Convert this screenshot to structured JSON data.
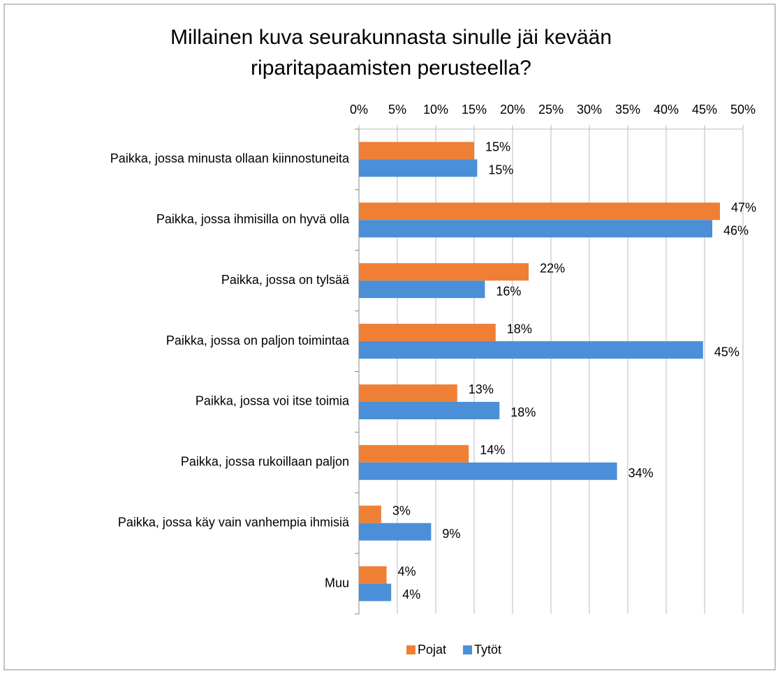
{
  "chart_data": {
    "type": "bar",
    "orientation": "horizontal",
    "title": "Millainen kuva seurakunnasta sinulle jäi kevään riparitapaamisten perusteella?",
    "categories": [
      "Paikka, jossa minusta ollaan kiinnostuneita",
      "Paikka, jossa ihmisilla on hyvä olla",
      "Paikka, jossa on tylsää",
      "Paikka, jossa on paljon toimintaa",
      "Paikka, jossa voi itse toimia",
      "Paikka, jossa rukoillaan paljon",
      "Paikka, jossa käy vain vanhempia ihmisiä",
      "Muu"
    ],
    "series": [
      {
        "name": "Pojat",
        "color": "#f07f36",
        "values": [
          15.0,
          47.0,
          22.1,
          17.8,
          12.8,
          14.3,
          2.9,
          3.6
        ],
        "value_labels": [
          "15%",
          "47%",
          "22%",
          "18%",
          "13%",
          "14%",
          "3%",
          "4%"
        ]
      },
      {
        "name": "Tytöt",
        "color": "#4a8fd8",
        "values": [
          15.4,
          46.0,
          16.4,
          44.8,
          18.3,
          33.6,
          9.4,
          4.2
        ],
        "value_labels": [
          "15%",
          "46%",
          "16%",
          "45%",
          "18%",
          "34%",
          "9%",
          "4%"
        ]
      }
    ],
    "xlim": [
      0,
      50
    ],
    "xticks": [
      {
        "value": 0,
        "label": "0%"
      },
      {
        "value": 5,
        "label": "5%"
      },
      {
        "value": 10,
        "label": "10%"
      },
      {
        "value": 15,
        "label": "15%"
      },
      {
        "value": 20,
        "label": "20%"
      },
      {
        "value": 25,
        "label": "25%"
      },
      {
        "value": 30,
        "label": "30%"
      },
      {
        "value": 35,
        "label": "35%"
      },
      {
        "value": 40,
        "label": "40%"
      },
      {
        "value": 45,
        "label": "45%"
      },
      {
        "value": 50,
        "label": "50%"
      }
    ],
    "grid": true,
    "legend": "bottom"
  }
}
